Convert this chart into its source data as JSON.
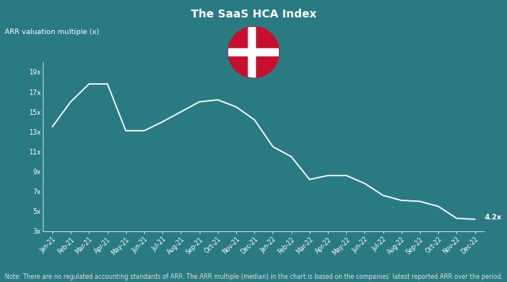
{
  "title": "The SaaS HCA Index",
  "ylabel": "ARR valuation multiple (x)",
  "note": "Note: There are no regulated accounting standards of ARR. The ARR multiple (median) in the chart is based on the companies' latest reported ARR over the period.",
  "background_color": "#2a7a82",
  "line_color": "#ffffff",
  "text_color": "#ffffff",
  "note_color": "#dddddd",
  "last_label": "4.2x",
  "x_labels": [
    "Jan-21",
    "Feb-21",
    "Mar-21",
    "Apr-21",
    "May-21",
    "Jun-21",
    "Jul-21",
    "Aug-21",
    "Sep-21",
    "Oct-21",
    "Nov-21",
    "Dec-21",
    "Jan-22",
    "Feb-22",
    "Mar-22",
    "Apr-22",
    "May-22",
    "Jun-22",
    "Jul-22",
    "Aug-22",
    "Sep-22",
    "Oct-22",
    "Nov-22",
    "Dec-22"
  ],
  "y_values": [
    13.5,
    16.0,
    17.8,
    17.8,
    13.1,
    13.1,
    14.0,
    15.0,
    16.0,
    16.2,
    15.5,
    14.2,
    11.5,
    10.5,
    8.2,
    8.6,
    8.6,
    7.8,
    6.6,
    6.1,
    6.0,
    5.5,
    4.3,
    4.2
  ],
  "ytick_labels": [
    "3x",
    "5x",
    "7x",
    "9x",
    "11x",
    "13x",
    "15x",
    "17x",
    "19x"
  ],
  "ytick_values": [
    3,
    5,
    7,
    9,
    11,
    13,
    15,
    17,
    19
  ],
  "ylim": [
    3,
    20
  ],
  "title_fontsize": 10,
  "axis_label_fontsize": 6.5,
  "tick_fontsize": 6,
  "note_fontsize": 5.5,
  "flag_color": "#C8102E",
  "flag_white": "#ffffff"
}
